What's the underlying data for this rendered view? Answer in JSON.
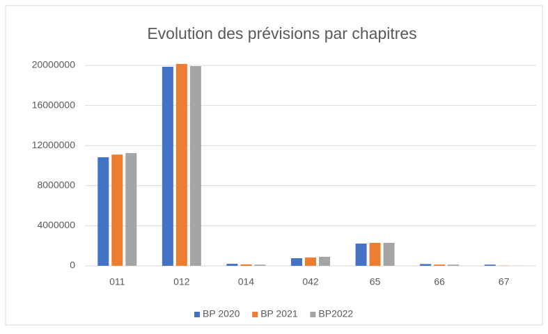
{
  "chart_data": {
    "type": "bar",
    "title": "Evolution des prévisions par chapitres",
    "categories": [
      "011",
      "012",
      "014",
      "042",
      "65",
      "66",
      "67"
    ],
    "series": [
      {
        "name": "BP 2020",
        "color": "#4472c4",
        "values": [
          10830000,
          19860000,
          200000,
          760000,
          2220000,
          180000,
          120000
        ]
      },
      {
        "name": "BP 2021",
        "color": "#ed7d31",
        "values": [
          11100000,
          20150000,
          140000,
          830000,
          2290000,
          130000,
          20000
        ]
      },
      {
        "name": "BP2022",
        "color": "#a5a5a5",
        "values": [
          11250000,
          19930000,
          120000,
          900000,
          2290000,
          120000,
          10000
        ]
      }
    ],
    "ylim": [
      0,
      20000000
    ],
    "yticks": [
      0,
      4000000,
      8000000,
      12000000,
      16000000,
      20000000
    ],
    "grid": true,
    "legend": "bottom"
  }
}
